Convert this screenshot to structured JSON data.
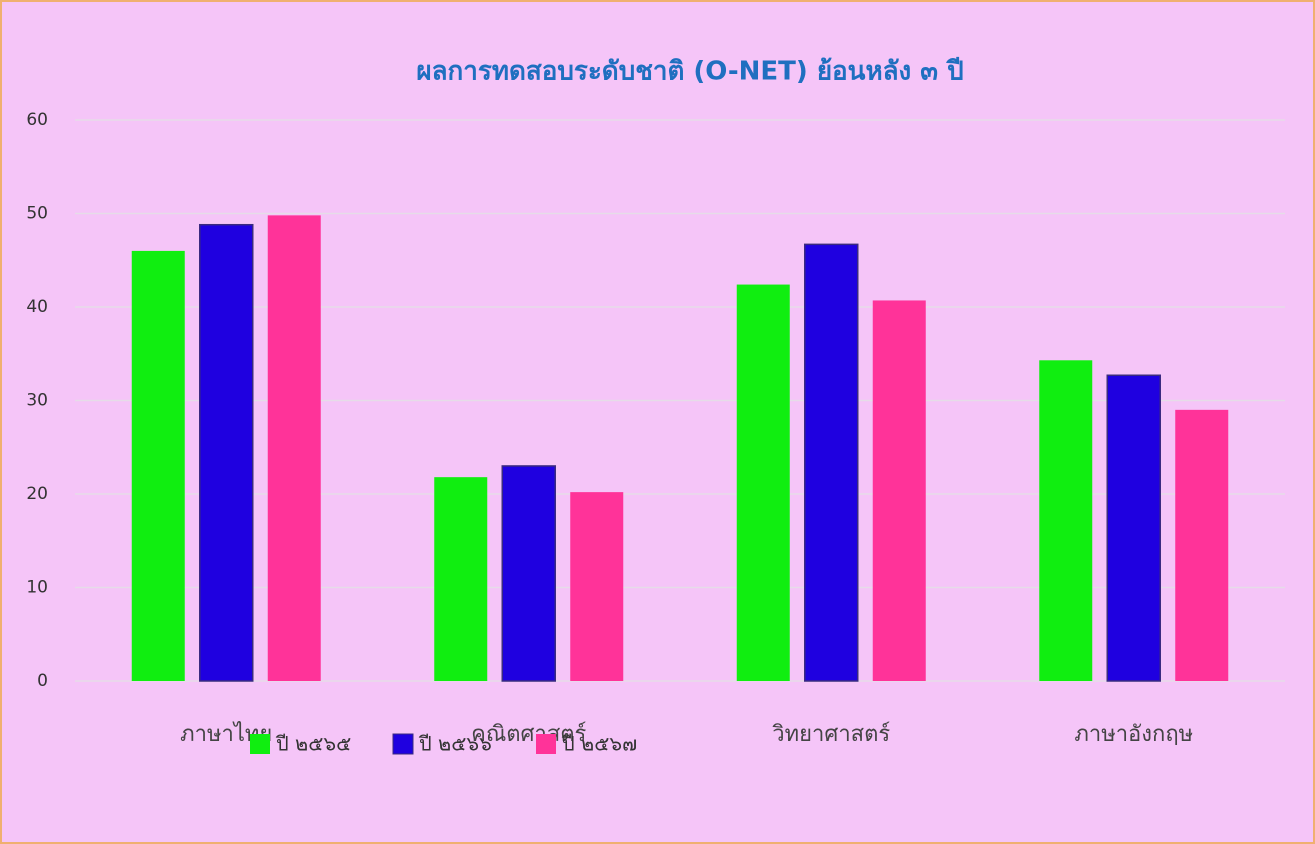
{
  "chart_data": {
    "type": "bar",
    "title": "ผลการทดสอบระดับชาติ (O-NET) ย้อนหลัง ๓ ปี",
    "categories": [
      "ภาษาไทย",
      "คณิตศาสตร์",
      "วิทยาศาสตร์",
      "ภาษาอังกฤษ"
    ],
    "series": [
      {
        "name": "ปี ๒๕๖๕",
        "color": "#10ee10",
        "values": [
          46.0,
          21.8,
          42.4,
          34.3
        ]
      },
      {
        "name": "ปี ๒๕๖๖",
        "color": "#1f00e0",
        "values": [
          48.8,
          23.0,
          46.7,
          32.7
        ]
      },
      {
        "name": "ปี ๒๕๖๗",
        "color": "#ff3399",
        "values": [
          49.8,
          20.2,
          40.7,
          29.0
        ]
      }
    ],
    "ylim": [
      0,
      60
    ],
    "yticks": [
      0,
      10,
      20,
      30,
      40,
      50,
      60
    ],
    "grid": true,
    "legend": "bottom"
  }
}
